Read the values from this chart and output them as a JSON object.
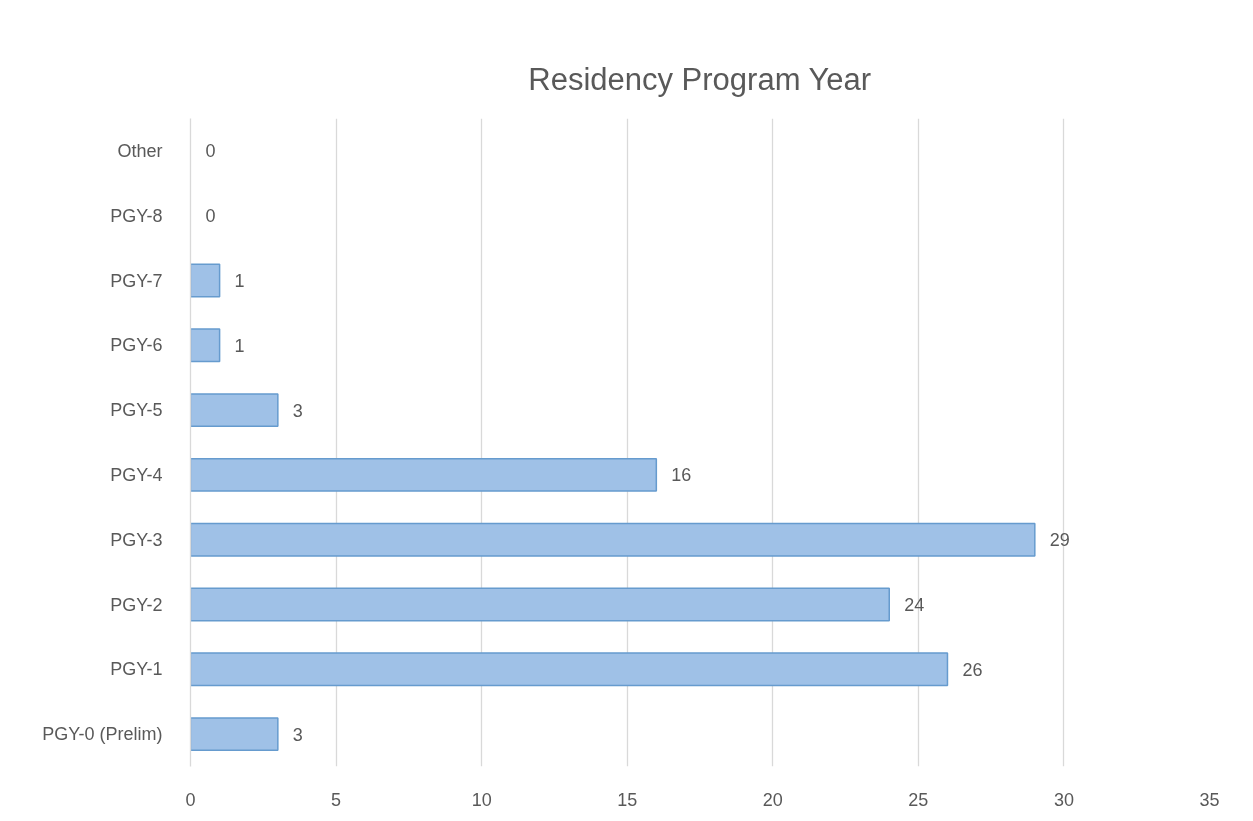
{
  "chart_data": {
    "type": "bar",
    "orientation": "horizontal",
    "title": "Residency Program Year",
    "categories": [
      "Other",
      "PGY-8",
      "PGY-7",
      "PGY-6",
      "PGY-5",
      "PGY-4",
      "PGY-3",
      "PGY-2",
      "PGY-1",
      "PGY-0 (Prelim)"
    ],
    "values": [
      0,
      0,
      1,
      1,
      3,
      16,
      29,
      24,
      26,
      3
    ],
    "color": "#9fc1e7",
    "xlim": [
      0,
      35
    ],
    "xticks": [
      0,
      5,
      10,
      15,
      20,
      25,
      30,
      35
    ],
    "grid": "x",
    "data_labels": true
  }
}
